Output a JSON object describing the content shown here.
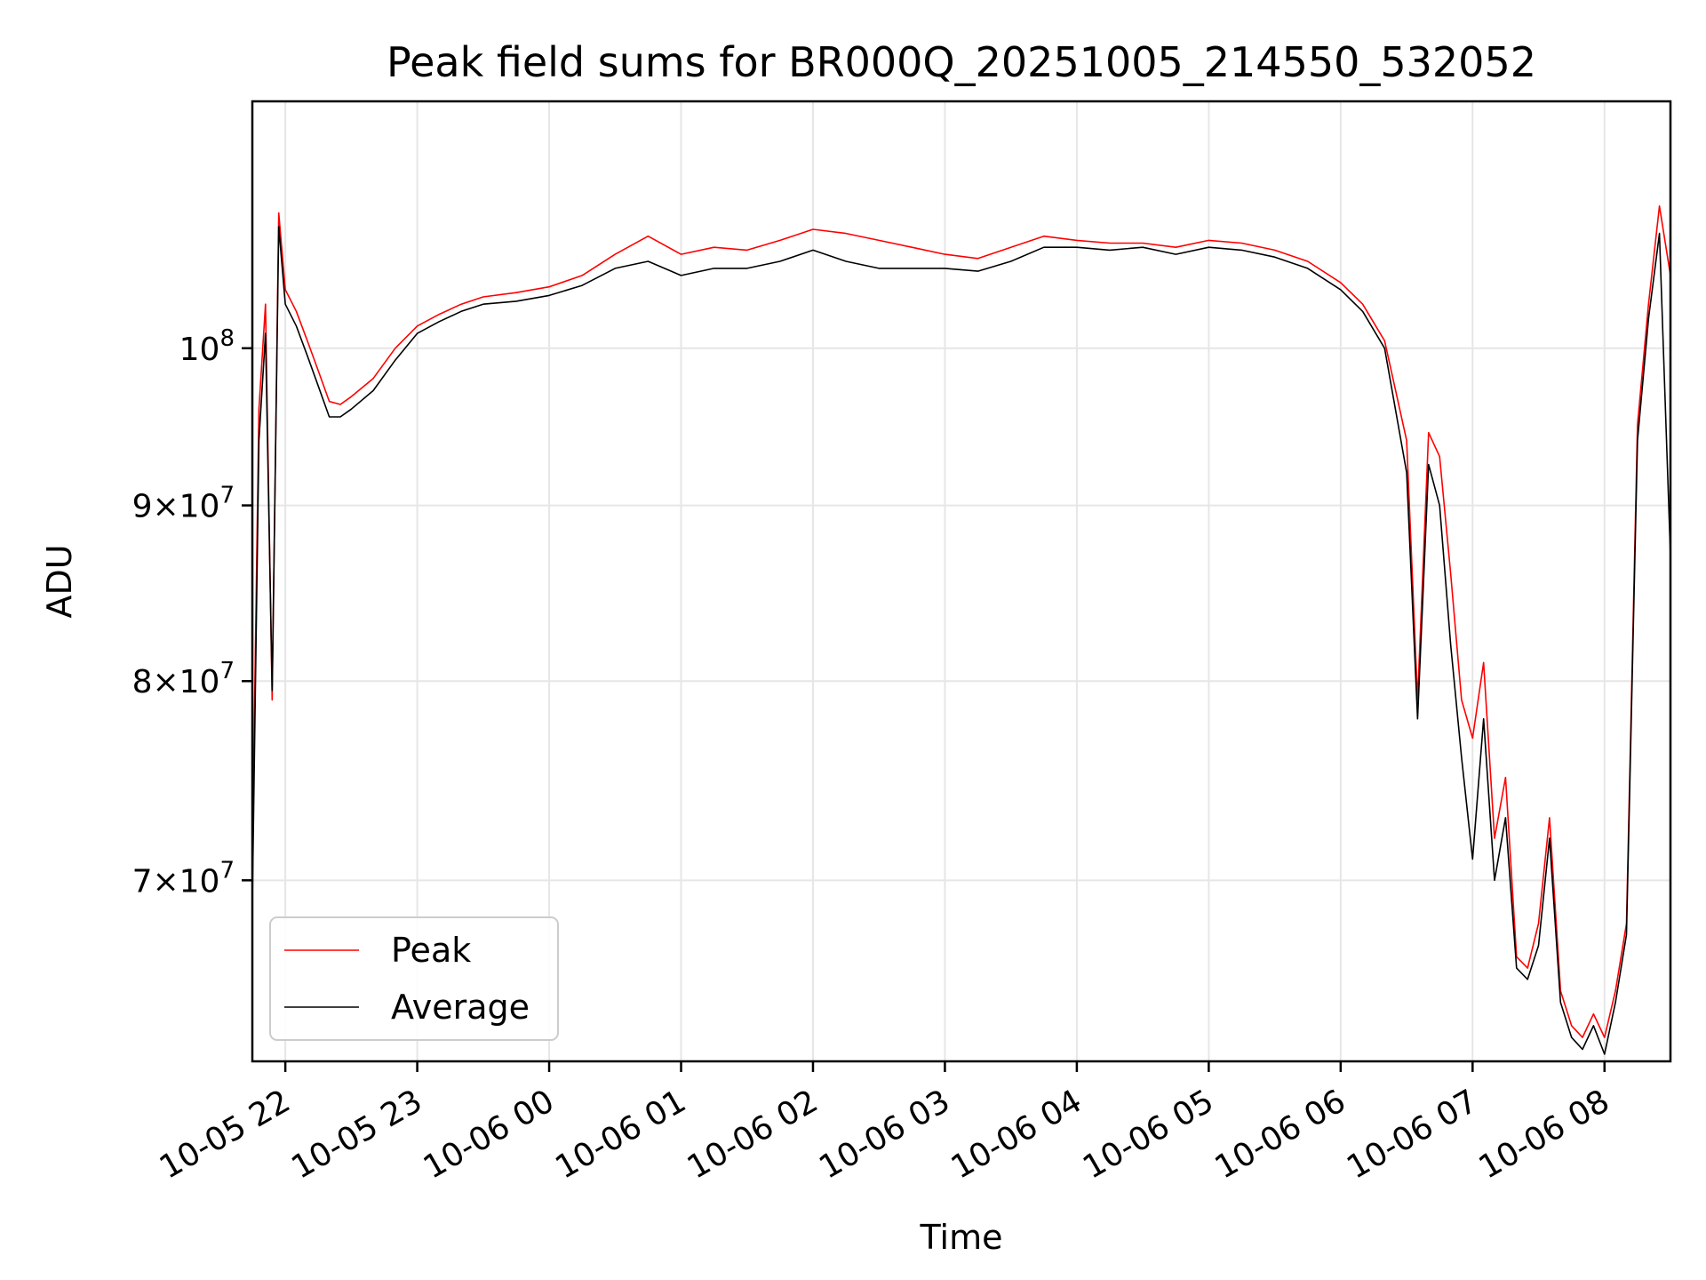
{
  "chart_data": {
    "type": "line",
    "title": "Peak field sums for BR000Q_20251005_214550_532052",
    "xlabel": "Time",
    "ylabel": "ADU",
    "yscale": "log",
    "grid": true,
    "legend_position": "lower-left",
    "xlim": [
      "2025-10-05 21:45",
      "2025-10-06 08:30"
    ],
    "ylim": [
      62000000,
      118000000
    ],
    "x_ticks": [
      {
        "x": "2025-10-05 22:00",
        "label": "10-05 22"
      },
      {
        "x": "2025-10-05 23:00",
        "label": "10-05 23"
      },
      {
        "x": "2025-10-06 00:00",
        "label": "10-06 00"
      },
      {
        "x": "2025-10-06 01:00",
        "label": "10-06 01"
      },
      {
        "x": "2025-10-06 02:00",
        "label": "10-06 02"
      },
      {
        "x": "2025-10-06 03:00",
        "label": "10-06 03"
      },
      {
        "x": "2025-10-06 04:00",
        "label": "10-06 04"
      },
      {
        "x": "2025-10-06 05:00",
        "label": "10-06 05"
      },
      {
        "x": "2025-10-06 06:00",
        "label": "10-06 06"
      },
      {
        "x": "2025-10-06 07:00",
        "label": "10-06 07"
      },
      {
        "x": "2025-10-06 08:00",
        "label": "10-06 08"
      }
    ],
    "y_ticks": [
      {
        "y": 70000000,
        "mantissa": "7",
        "sep": "×",
        "base": "10",
        "exp": "7"
      },
      {
        "y": 80000000,
        "mantissa": "8",
        "sep": "×",
        "base": "10",
        "exp": "7"
      },
      {
        "y": 90000000,
        "mantissa": "9",
        "sep": "×",
        "base": "10",
        "exp": "7"
      },
      {
        "y": 100000000,
        "mantissa": "",
        "sep": "",
        "base": "10",
        "exp": "8"
      }
    ],
    "series": [
      {
        "name": "Peak",
        "color": "#ff0000",
        "x": [
          "2025-10-05 21:45",
          "2025-10-05 21:48",
          "2025-10-05 21:51",
          "2025-10-05 21:54",
          "2025-10-05 21:57",
          "2025-10-05 22:00",
          "2025-10-05 22:05",
          "2025-10-05 22:10",
          "2025-10-05 22:15",
          "2025-10-05 22:20",
          "2025-10-05 22:25",
          "2025-10-05 22:30",
          "2025-10-05 22:40",
          "2025-10-05 22:50",
          "2025-10-05 23:00",
          "2025-10-05 23:10",
          "2025-10-05 23:20",
          "2025-10-05 23:30",
          "2025-10-05 23:45",
          "2025-10-06 00:00",
          "2025-10-06 00:15",
          "2025-10-06 00:30",
          "2025-10-06 00:45",
          "2025-10-06 01:00",
          "2025-10-06 01:15",
          "2025-10-06 01:30",
          "2025-10-06 01:45",
          "2025-10-06 02:00",
          "2025-10-06 02:15",
          "2025-10-06 02:30",
          "2025-10-06 02:45",
          "2025-10-06 03:00",
          "2025-10-06 03:15",
          "2025-10-06 03:30",
          "2025-10-06 03:45",
          "2025-10-06 04:00",
          "2025-10-06 04:15",
          "2025-10-06 04:30",
          "2025-10-06 04:45",
          "2025-10-06 05:00",
          "2025-10-06 05:15",
          "2025-10-06 05:30",
          "2025-10-06 05:45",
          "2025-10-06 06:00",
          "2025-10-06 06:10",
          "2025-10-06 06:20",
          "2025-10-06 06:30",
          "2025-10-06 06:35",
          "2025-10-06 06:40",
          "2025-10-06 06:45",
          "2025-10-06 06:50",
          "2025-10-06 06:55",
          "2025-10-06 07:00",
          "2025-10-06 07:05",
          "2025-10-06 07:10",
          "2025-10-06 07:15",
          "2025-10-06 07:20",
          "2025-10-06 07:25",
          "2025-10-06 07:30",
          "2025-10-06 07:35",
          "2025-10-06 07:40",
          "2025-10-06 07:45",
          "2025-10-06 07:50",
          "2025-10-06 07:55",
          "2025-10-06 08:00",
          "2025-10-06 08:05",
          "2025-10-06 08:10",
          "2025-10-06 08:15",
          "2025-10-06 08:20",
          "2025-10-06 08:25",
          "2025-10-06 08:30"
        ],
        "y": [
          71000000,
          96000000,
          103000000,
          79000000,
          109500000,
          104000000,
          102500000,
          100500000,
          98500000,
          96500000,
          96300000,
          96800000,
          98000000,
          100000000,
          101500000,
          102300000,
          103000000,
          103500000,
          103800000,
          104200000,
          105000000,
          106500000,
          107800000,
          106500000,
          107000000,
          106800000,
          107500000,
          108300000,
          108000000,
          107500000,
          107000000,
          106500000,
          106200000,
          107000000,
          107800000,
          107500000,
          107300000,
          107300000,
          107000000,
          107500000,
          107300000,
          106800000,
          106000000,
          104500000,
          103000000,
          100500000,
          94000000,
          79000000,
          94500000,
          93000000,
          86000000,
          79000000,
          77000000,
          81000000,
          72000000,
          75000000,
          66500000,
          66000000,
          68000000,
          73000000,
          65000000,
          63500000,
          63000000,
          64000000,
          63000000,
          65000000,
          68000000,
          95000000,
          103000000,
          110000000,
          105000000
        ]
      },
      {
        "name": "Average",
        "color": "#000000",
        "x": [
          "2025-10-05 21:45",
          "2025-10-05 21:48",
          "2025-10-05 21:51",
          "2025-10-05 21:54",
          "2025-10-05 21:57",
          "2025-10-05 22:00",
          "2025-10-05 22:05",
          "2025-10-05 22:10",
          "2025-10-05 22:15",
          "2025-10-05 22:20",
          "2025-10-05 22:25",
          "2025-10-05 22:30",
          "2025-10-05 22:40",
          "2025-10-05 22:50",
          "2025-10-05 23:00",
          "2025-10-05 23:10",
          "2025-10-05 23:20",
          "2025-10-05 23:30",
          "2025-10-05 23:45",
          "2025-10-06 00:00",
          "2025-10-06 00:15",
          "2025-10-06 00:30",
          "2025-10-06 00:45",
          "2025-10-06 01:00",
          "2025-10-06 01:15",
          "2025-10-06 01:30",
          "2025-10-06 01:45",
          "2025-10-06 02:00",
          "2025-10-06 02:15",
          "2025-10-06 02:30",
          "2025-10-06 02:45",
          "2025-10-06 03:00",
          "2025-10-06 03:15",
          "2025-10-06 03:30",
          "2025-10-06 03:45",
          "2025-10-06 04:00",
          "2025-10-06 04:15",
          "2025-10-06 04:30",
          "2025-10-06 04:45",
          "2025-10-06 05:00",
          "2025-10-06 05:15",
          "2025-10-06 05:30",
          "2025-10-06 05:45",
          "2025-10-06 06:00",
          "2025-10-06 06:10",
          "2025-10-06 06:20",
          "2025-10-06 06:30",
          "2025-10-06 06:35",
          "2025-10-06 06:40",
          "2025-10-06 06:45",
          "2025-10-06 06:50",
          "2025-10-06 06:55",
          "2025-10-06 07:00",
          "2025-10-06 07:05",
          "2025-10-06 07:10",
          "2025-10-06 07:15",
          "2025-10-06 07:20",
          "2025-10-06 07:25",
          "2025-10-06 07:30",
          "2025-10-06 07:35",
          "2025-10-06 07:40",
          "2025-10-06 07:45",
          "2025-10-06 07:50",
          "2025-10-06 07:55",
          "2025-10-06 08:00",
          "2025-10-06 08:05",
          "2025-10-06 08:10",
          "2025-10-06 08:15",
          "2025-10-06 08:20",
          "2025-10-06 08:25",
          "2025-10-06 08:30"
        ],
        "y": [
          69000000,
          94000000,
          101000000,
          79500000,
          108500000,
          103000000,
          101500000,
          99500000,
          97500000,
          95500000,
          95500000,
          96000000,
          97200000,
          99200000,
          101000000,
          101800000,
          102500000,
          103000000,
          103200000,
          103600000,
          104300000,
          105500000,
          106000000,
          105000000,
          105500000,
          105500000,
          106000000,
          106800000,
          106000000,
          105500000,
          105500000,
          105500000,
          105300000,
          106000000,
          107000000,
          107000000,
          106800000,
          107000000,
          106500000,
          107000000,
          106800000,
          106300000,
          105500000,
          104000000,
          102500000,
          100000000,
          92000000,
          78000000,
          92500000,
          90000000,
          82000000,
          76000000,
          71000000,
          78000000,
          70000000,
          73000000,
          66000000,
          65500000,
          67000000,
          72000000,
          64500000,
          63000000,
          62500000,
          63500000,
          62300000,
          64500000,
          67500000,
          94000000,
          102000000,
          108000000,
          87000000
        ]
      }
    ]
  }
}
